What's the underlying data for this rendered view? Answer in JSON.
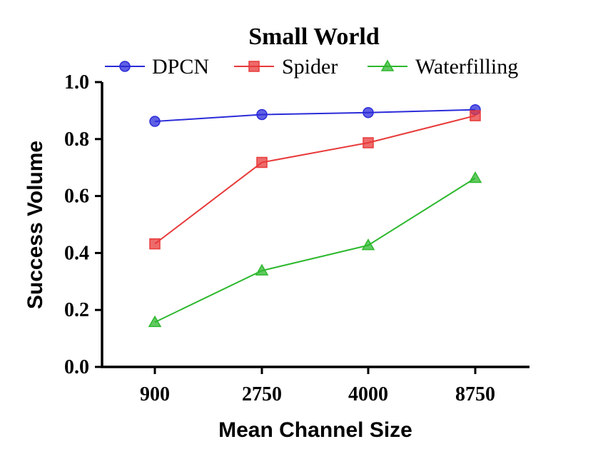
{
  "chart_data": {
    "type": "line",
    "title": "Small World",
    "xlabel": "Mean Channel Size",
    "ylabel": "Success Volume",
    "categories": [
      "900",
      "2750",
      "4000",
      "8750"
    ],
    "ylim": [
      0.0,
      1.0
    ],
    "yticks": [
      "0.0",
      "0.2",
      "0.4",
      "0.6",
      "0.8",
      "1.0"
    ],
    "legend_position": "top",
    "grid": false,
    "series": [
      {
        "name": "DPCN",
        "values": [
          0.862,
          0.886,
          0.893,
          0.903
        ],
        "color": "#2b2bd9",
        "marker": "circle"
      },
      {
        "name": "Spider",
        "values": [
          0.432,
          0.718,
          0.787,
          0.882
        ],
        "color": "#e83a3a",
        "marker": "square"
      },
      {
        "name": "Waterfilling",
        "values": [
          0.157,
          0.338,
          0.427,
          0.663
        ],
        "color": "#2db82d",
        "marker": "triangle"
      }
    ]
  }
}
